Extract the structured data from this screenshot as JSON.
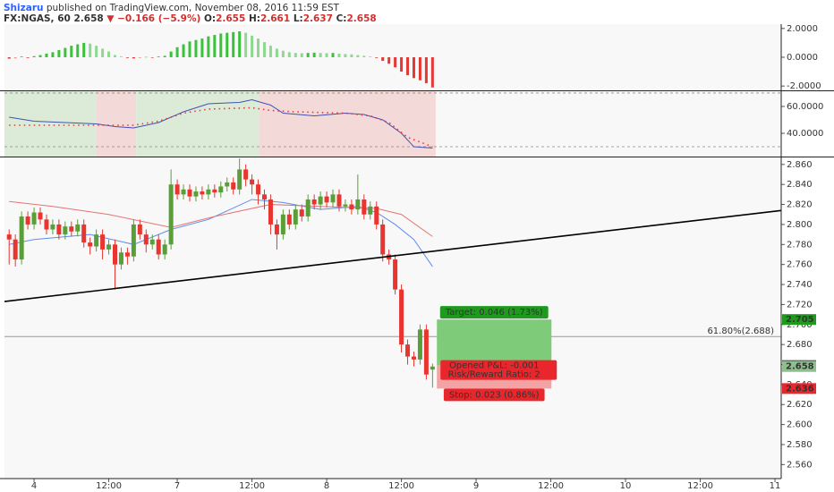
{
  "header": {
    "author": "Shizaru",
    "published": "published on TradingView.com, November 08, 2016 11:59 EST",
    "symbol": "FX:NGAS, 60",
    "last": "2.658",
    "change": "▼ −0.166 (−5.9%)",
    "open_label": "O:",
    "open": "2.655",
    "high_label": "H:",
    "high": "2.661",
    "low_label": "L:",
    "low": "2.637",
    "close_label": "C:",
    "close": "2.658"
  },
  "chart_data": [
    {
      "type": "histogram",
      "xlim": [
        -4.75,
        120
      ],
      "ylim": [
        -2.3,
        2.3
      ],
      "yticks": [
        {
          "value": 2,
          "label": "2.0000"
        },
        {
          "value": 0,
          "label": "0.0000"
        },
        {
          "value": -2,
          "label": "-2.0000"
        }
      ],
      "colors": {
        "up_rising": "#3cc13c",
        "up_falling": "#8fd88f",
        "down_falling": "#e53935",
        "down_rising": "#ef9a9a"
      },
      "x": [
        -4,
        -3,
        -2,
        -1,
        0,
        1,
        2,
        3,
        4,
        5,
        6,
        7,
        8,
        9,
        10,
        11,
        12,
        13,
        14,
        15,
        16,
        17,
        18,
        19,
        20,
        21,
        22,
        23,
        24,
        25,
        26,
        27,
        28,
        29,
        30,
        31,
        32,
        33,
        34,
        35,
        36,
        37,
        38,
        39,
        40,
        41,
        42,
        43,
        44,
        45,
        46,
        47,
        48,
        49,
        50,
        51,
        52,
        53,
        54,
        55,
        56,
        57,
        58,
        59,
        60,
        61,
        62,
        63,
        64
      ],
      "values": [
        -0.1,
        -0.08,
        0.05,
        -0.05,
        0.08,
        0.15,
        0.25,
        0.35,
        0.5,
        0.65,
        0.8,
        0.9,
        1.0,
        0.95,
        0.8,
        0.6,
        0.4,
        0.15,
        0.05,
        -0.05,
        -0.08,
        -0.05,
        0.02,
        -0.04,
        0.05,
        0.1,
        0.4,
        0.7,
        0.9,
        1.1,
        1.2,
        1.3,
        1.45,
        1.55,
        1.65,
        1.7,
        1.75,
        1.8,
        1.7,
        1.5,
        1.3,
        1.05,
        0.8,
        0.6,
        0.45,
        0.35,
        0.3,
        0.28,
        0.3,
        0.32,
        0.3,
        0.28,
        0.3,
        0.25,
        0.22,
        0.2,
        0.15,
        0.1,
        0.05,
        -0.05,
        -0.25,
        -0.45,
        -0.7,
        -1.0,
        -1.25,
        -1.45,
        -1.6,
        -1.8,
        -2.1
      ]
    },
    {
      "type": "oscillator",
      "xlim": [
        -4.75,
        120
      ],
      "ylim": [
        22.7,
        71.3
      ],
      "yticks": [
        {
          "value": 60,
          "label": "60.0000"
        },
        {
          "value": 40,
          "label": "40.0000"
        }
      ],
      "levels": [
        70,
        30
      ],
      "regions": [
        {
          "from": -4.75,
          "to": 10,
          "color": "#dcebd8"
        },
        {
          "from": 10,
          "to": 16.4,
          "color": "#f4d9d9"
        },
        {
          "from": 16.4,
          "to": 36.2,
          "color": "#dcebd8"
        },
        {
          "from": 36.2,
          "to": 64.5,
          "color": "#f4d9d9"
        }
      ],
      "series": [
        {
          "color": "#3f51b5",
          "dash": false,
          "x": [
            -4,
            0,
            5,
            10,
            13,
            16,
            20,
            24,
            28,
            33,
            35,
            38,
            40,
            45,
            50,
            53,
            56,
            59,
            61,
            64
          ],
          "values": [
            52,
            49,
            48,
            47,
            45,
            44,
            48,
            56,
            62,
            63,
            65,
            61,
            55,
            53,
            55,
            54,
            50,
            40,
            30,
            29
          ]
        },
        {
          "color": "#e53935",
          "dash": true,
          "x": [
            -4,
            10,
            16,
            20,
            24,
            28,
            35,
            38,
            42,
            50,
            54,
            57,
            60,
            64
          ],
          "values": [
            46,
            46,
            46,
            49,
            55,
            58,
            59,
            57,
            56,
            55,
            53,
            48,
            37,
            30
          ]
        }
      ]
    },
    {
      "type": "candlestick",
      "xlim": [
        -4.75,
        120
      ],
      "ylim": [
        2.546,
        2.867
      ],
      "up_color": "#5a9e3a",
      "down_color": "#e8352f",
      "xticks": [
        {
          "value": 0,
          "label": "4"
        },
        {
          "value": 12,
          "label": "12:00"
        },
        {
          "value": 23,
          "label": "7"
        },
        {
          "value": 35,
          "label": "12:00"
        },
        {
          "value": 47,
          "label": "8"
        },
        {
          "value": 59,
          "label": "12:00"
        },
        {
          "value": 71,
          "label": "9"
        },
        {
          "value": 83,
          "label": "12:00"
        },
        {
          "value": 95,
          "label": "10"
        },
        {
          "value": 107,
          "label": "12:00"
        },
        {
          "value": 119,
          "label": "11"
        }
      ],
      "yticks": [
        {
          "value": 2.56,
          "label": "2.560"
        },
        {
          "value": 2.58,
          "label": "2.580"
        },
        {
          "value": 2.6,
          "label": "2.600"
        },
        {
          "value": 2.62,
          "label": "2.620"
        },
        {
          "value": 2.64,
          "label": "2.640"
        },
        {
          "value": 2.66,
          "label": "2.660"
        },
        {
          "value": 2.68,
          "label": "2.680"
        },
        {
          "value": 2.7,
          "label": "2.700"
        },
        {
          "value": 2.72,
          "label": "2.720"
        },
        {
          "value": 2.74,
          "label": "2.740"
        },
        {
          "value": 2.76,
          "label": "2.760"
        },
        {
          "value": 2.78,
          "label": "2.780"
        },
        {
          "value": 2.8,
          "label": "2.800"
        },
        {
          "value": 2.82,
          "label": "2.820"
        },
        {
          "value": 2.84,
          "label": "2.840"
        },
        {
          "value": 2.86,
          "label": "2.860"
        }
      ],
      "x": [
        -4,
        -3,
        -2,
        -1,
        0,
        1,
        2,
        3,
        4,
        5,
        6,
        7,
        8,
        9,
        10,
        11,
        12,
        13,
        14,
        15,
        16,
        17,
        18,
        19,
        20,
        21,
        22,
        23,
        24,
        25,
        26,
        27,
        28,
        29,
        30,
        31,
        32,
        33,
        34,
        35,
        36,
        37,
        38,
        39,
        40,
        41,
        42,
        43,
        44,
        45,
        46,
        47,
        48,
        49,
        50,
        51,
        52,
        53,
        54,
        55,
        56,
        57,
        58,
        59,
        60,
        61,
        62,
        63,
        64
      ],
      "open": [
        2.79,
        2.785,
        2.765,
        2.808,
        2.8,
        2.812,
        2.805,
        2.795,
        2.8,
        2.79,
        2.798,
        2.793,
        2.8,
        2.782,
        2.778,
        2.79,
        2.775,
        2.78,
        2.76,
        2.772,
        2.768,
        2.8,
        2.79,
        2.78,
        2.785,
        2.77,
        2.78,
        2.84,
        2.83,
        2.835,
        2.828,
        2.833,
        2.83,
        2.835,
        2.832,
        2.838,
        2.842,
        2.835,
        2.855,
        2.845,
        2.84,
        2.83,
        2.825,
        2.8,
        2.79,
        2.81,
        2.8,
        2.815,
        2.808,
        2.825,
        2.82,
        2.828,
        2.822,
        2.83,
        2.818,
        2.82,
        2.815,
        2.825,
        2.81,
        2.818,
        2.8,
        2.77,
        2.765,
        2.735,
        2.68,
        2.668,
        2.665,
        2.695,
        2.655
      ],
      "high": [
        2.795,
        2.79,
        2.813,
        2.813,
        2.817,
        2.817,
        2.81,
        2.805,
        2.805,
        2.803,
        2.803,
        2.805,
        2.805,
        2.787,
        2.795,
        2.795,
        2.785,
        2.785,
        2.777,
        2.777,
        2.805,
        2.805,
        2.795,
        2.79,
        2.79,
        2.785,
        2.855,
        2.845,
        2.84,
        2.84,
        2.838,
        2.838,
        2.84,
        2.84,
        2.843,
        2.847,
        2.847,
        2.866,
        2.86,
        2.85,
        2.845,
        2.835,
        2.83,
        2.805,
        2.815,
        2.815,
        2.82,
        2.82,
        2.83,
        2.83,
        2.833,
        2.833,
        2.835,
        2.835,
        2.825,
        2.825,
        2.85,
        2.83,
        2.823,
        2.823,
        2.805,
        2.775,
        2.77,
        2.74,
        2.685,
        2.673,
        2.7,
        2.7,
        2.661
      ],
      "low": [
        2.76,
        2.758,
        2.76,
        2.795,
        2.795,
        2.8,
        2.79,
        2.79,
        2.785,
        2.785,
        2.788,
        2.788,
        2.777,
        2.77,
        2.773,
        2.765,
        2.77,
        2.735,
        2.755,
        2.76,
        2.763,
        2.785,
        2.772,
        2.775,
        2.765,
        2.765,
        2.775,
        2.825,
        2.825,
        2.823,
        2.823,
        2.825,
        2.825,
        2.827,
        2.827,
        2.833,
        2.83,
        2.83,
        2.838,
        2.83,
        2.82,
        2.815,
        2.79,
        2.775,
        2.785,
        2.795,
        2.795,
        2.803,
        2.803,
        2.815,
        2.815,
        2.817,
        2.817,
        2.813,
        2.813,
        2.81,
        2.81,
        2.805,
        2.805,
        2.795,
        2.763,
        2.76,
        2.73,
        2.672,
        2.66,
        2.658,
        2.66,
        2.645,
        2.637
      ],
      "close": [
        2.785,
        2.765,
        2.808,
        2.8,
        2.812,
        2.805,
        2.795,
        2.8,
        2.79,
        2.798,
        2.793,
        2.8,
        2.782,
        2.778,
        2.79,
        2.775,
        2.78,
        2.76,
        2.772,
        2.768,
        2.8,
        2.79,
        2.78,
        2.785,
        2.77,
        2.78,
        2.84,
        2.83,
        2.835,
        2.828,
        2.833,
        2.83,
        2.835,
        2.832,
        2.838,
        2.842,
        2.835,
        2.855,
        2.845,
        2.84,
        2.83,
        2.825,
        2.8,
        2.79,
        2.81,
        2.8,
        2.815,
        2.808,
        2.825,
        2.82,
        2.828,
        2.822,
        2.83,
        2.818,
        2.82,
        2.815,
        2.825,
        2.81,
        2.818,
        2.8,
        2.77,
        2.765,
        2.735,
        2.68,
        2.668,
        2.665,
        2.695,
        2.65,
        2.658
      ],
      "lines": [
        {
          "color": "#5b8def",
          "x": [
            -4,
            0,
            9,
            16,
            22,
            28,
            35,
            40,
            46,
            52,
            55,
            58,
            61,
            64
          ],
          "values": [
            2.78,
            2.785,
            2.79,
            2.78,
            2.795,
            2.805,
            2.825,
            2.822,
            2.815,
            2.818,
            2.812,
            2.8,
            2.785,
            2.758
          ]
        },
        {
          "color": "#e57373",
          "x": [
            -4,
            3,
            12,
            22,
            29,
            38,
            46,
            55,
            59,
            64
          ],
          "values": [
            2.823,
            2.818,
            2.81,
            2.797,
            2.808,
            2.82,
            2.818,
            2.816,
            2.81,
            2.788
          ]
        }
      ],
      "trend_line": {
        "color": "#000000",
        "x": [
          -4.75,
          120
        ],
        "values": [
          2.723,
          2.814
        ]
      },
      "level": {
        "value": 2.688,
        "label": "61.80%(2.688)"
      },
      "position": {
        "x_start": 64.7,
        "x_end": 83.1,
        "entry": 2.659,
        "target": 2.705,
        "stop": 2.636,
        "target_label": "Target: 0.046 (1.73%)",
        "pnl_label": "Opened P&L: -0.001",
        "rr_label": "Risk/Reward Ratio: 2",
        "stop_label": "Stop: 0.023 (0.86%)",
        "profit_color": "#7ecb7a",
        "loss_color": "#f3a3a3",
        "target_color": "#1f9a1f",
        "stop_color": "#e8262b"
      },
      "price_markers": [
        {
          "value": 2.705,
          "color": "#1f9a1f"
        },
        {
          "value": 2.659,
          "color": "#555555"
        },
        {
          "value": 2.658,
          "color": "#8fbf8f"
        },
        {
          "value": 2.636,
          "color": "#e8262b"
        }
      ]
    }
  ]
}
